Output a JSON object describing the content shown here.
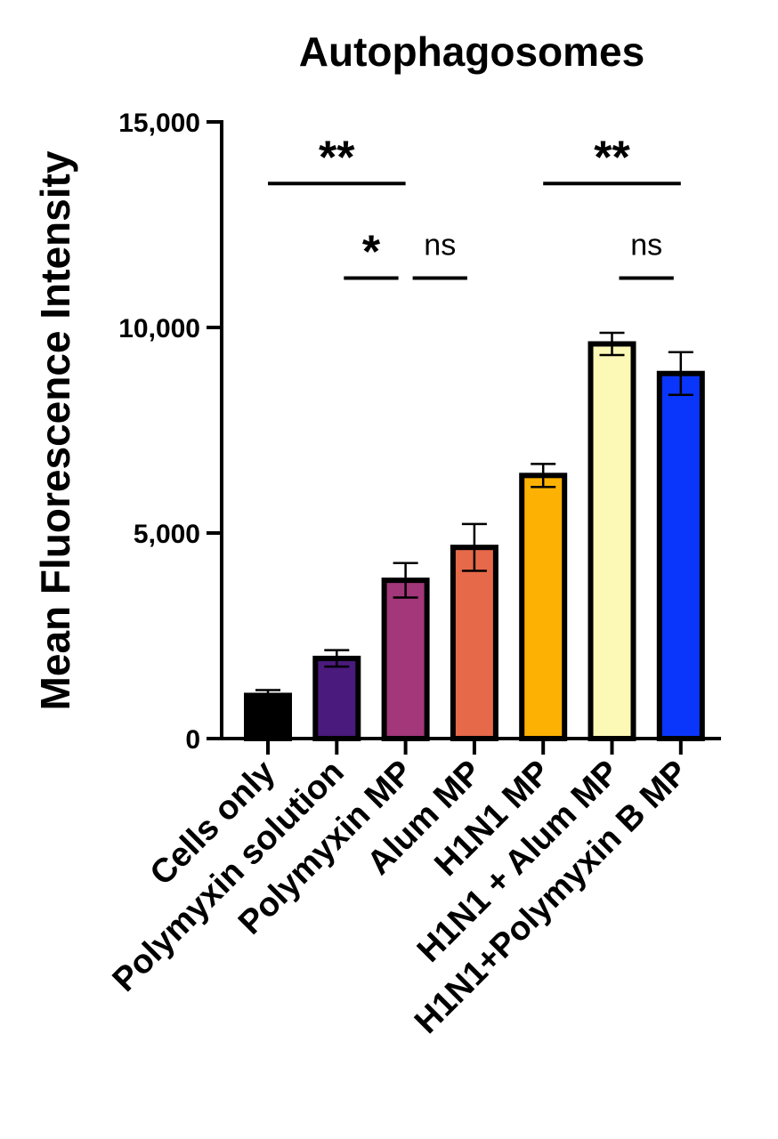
{
  "chart_data": {
    "type": "bar",
    "title": "Autophagosomes",
    "xlabel": "",
    "ylabel": "Mean Fluorescence Intensity",
    "ylim": [
      0,
      15000
    ],
    "yticks": [
      0,
      5000,
      10000,
      15000
    ],
    "ytick_labels": [
      "0",
      "5,000",
      "10,000",
      "15,000"
    ],
    "categories": [
      "Cells only",
      "Polymyxin solution",
      "Polymyxin MP",
      "Alum MP",
      "H1N1 MP",
      "H1N1 + Alum MP",
      "H1N1+Polymyxin B MP"
    ],
    "values": [
      1050,
      1950,
      3850,
      4650,
      6400,
      9600,
      8880
    ],
    "errors": [
      130,
      200,
      420,
      570,
      280,
      270,
      520
    ],
    "colors": [
      "#000000",
      "#4a1a7c",
      "#a3377a",
      "#e6694a",
      "#fcb103",
      "#fcf9b6",
      "#0a36fb"
    ],
    "significance": [
      {
        "from": 0,
        "to": 2,
        "label": "**",
        "y": 13500
      },
      {
        "from": 1,
        "to": 2,
        "label": "*",
        "y": 11200
      },
      {
        "from": 2,
        "to": 3,
        "label": "ns",
        "y": 11200
      },
      {
        "from": 4,
        "to": 6,
        "label": "**",
        "y": 13500
      },
      {
        "from": 5,
        "to": 6,
        "label": "ns",
        "y": 11200
      }
    ]
  }
}
